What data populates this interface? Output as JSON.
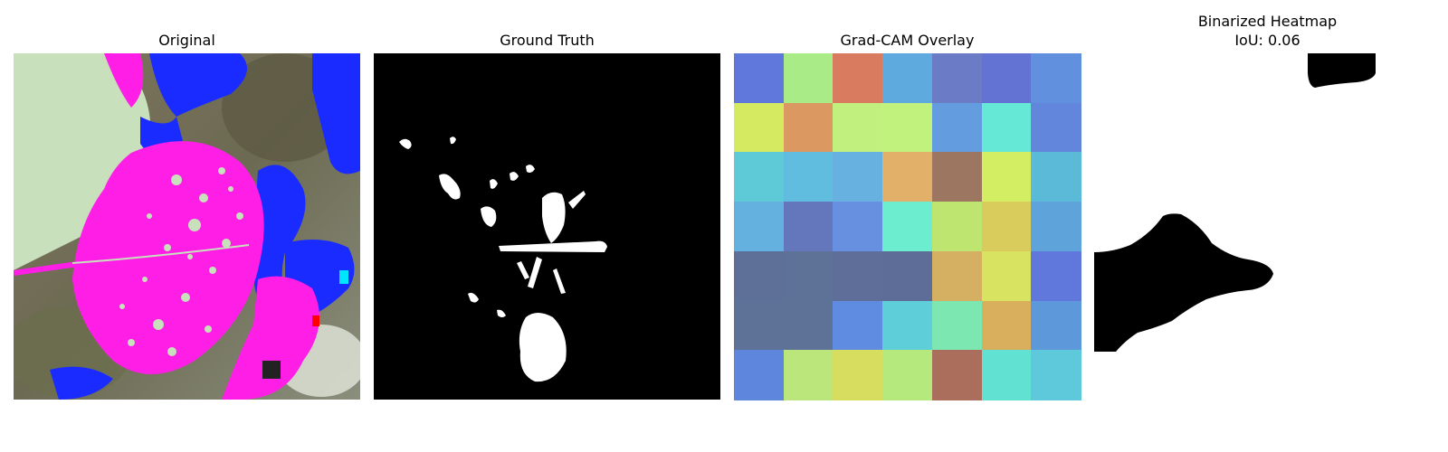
{
  "panels": {
    "original": {
      "title": "Original"
    },
    "ground_truth": {
      "title": "Ground Truth"
    },
    "gradcam": {
      "title": "Grad-CAM Overlay",
      "rows": 7,
      "cols": 7,
      "colors": [
        [
          "#6077dc",
          "#a9ec87",
          "#d97b5e",
          "#5eaadf",
          "#6c7bc6",
          "#6373d4",
          "#6190de"
        ],
        [
          "#d5ea60",
          "#db9961",
          "#c2f07f",
          "#c0f27d",
          "#649ddf",
          "#66e8d6",
          "#6286dc"
        ],
        [
          "#5ecad7",
          "#61bddf",
          "#66b1e0",
          "#e2b069",
          "#9c7660",
          "#d3ee62",
          "#5cbad9"
        ],
        [
          "#64b1df",
          "#6477bc",
          "#6790e0",
          "#6cedd0",
          "#bde56f",
          "#d9cc5d",
          "#5ea4db"
        ],
        [
          "#5e7098",
          "#5e7298",
          "#5f6e98",
          "#5e6c98",
          "#d5b062",
          "#d9e362",
          "#6077dc"
        ],
        [
          "#5e7298",
          "#5e7298",
          "#5f8ce0",
          "#5ecfd8",
          "#7ce7b0",
          "#d9ae5d",
          "#5d98db"
        ],
        [
          "#5d86dc",
          "#bbe67c",
          "#d6dd5f",
          "#b6e97d",
          "#ab6e5c",
          "#60e1d1",
          "#5ec9da"
        ]
      ]
    },
    "binarized": {
      "title_line1": "Binarized Heatmap",
      "iou_label": "IoU: 0.06"
    }
  },
  "colors": {
    "background": "#ffffff",
    "magenta": "#ff1ee6",
    "blue": "#1a2bff",
    "mask": "#000000"
  }
}
